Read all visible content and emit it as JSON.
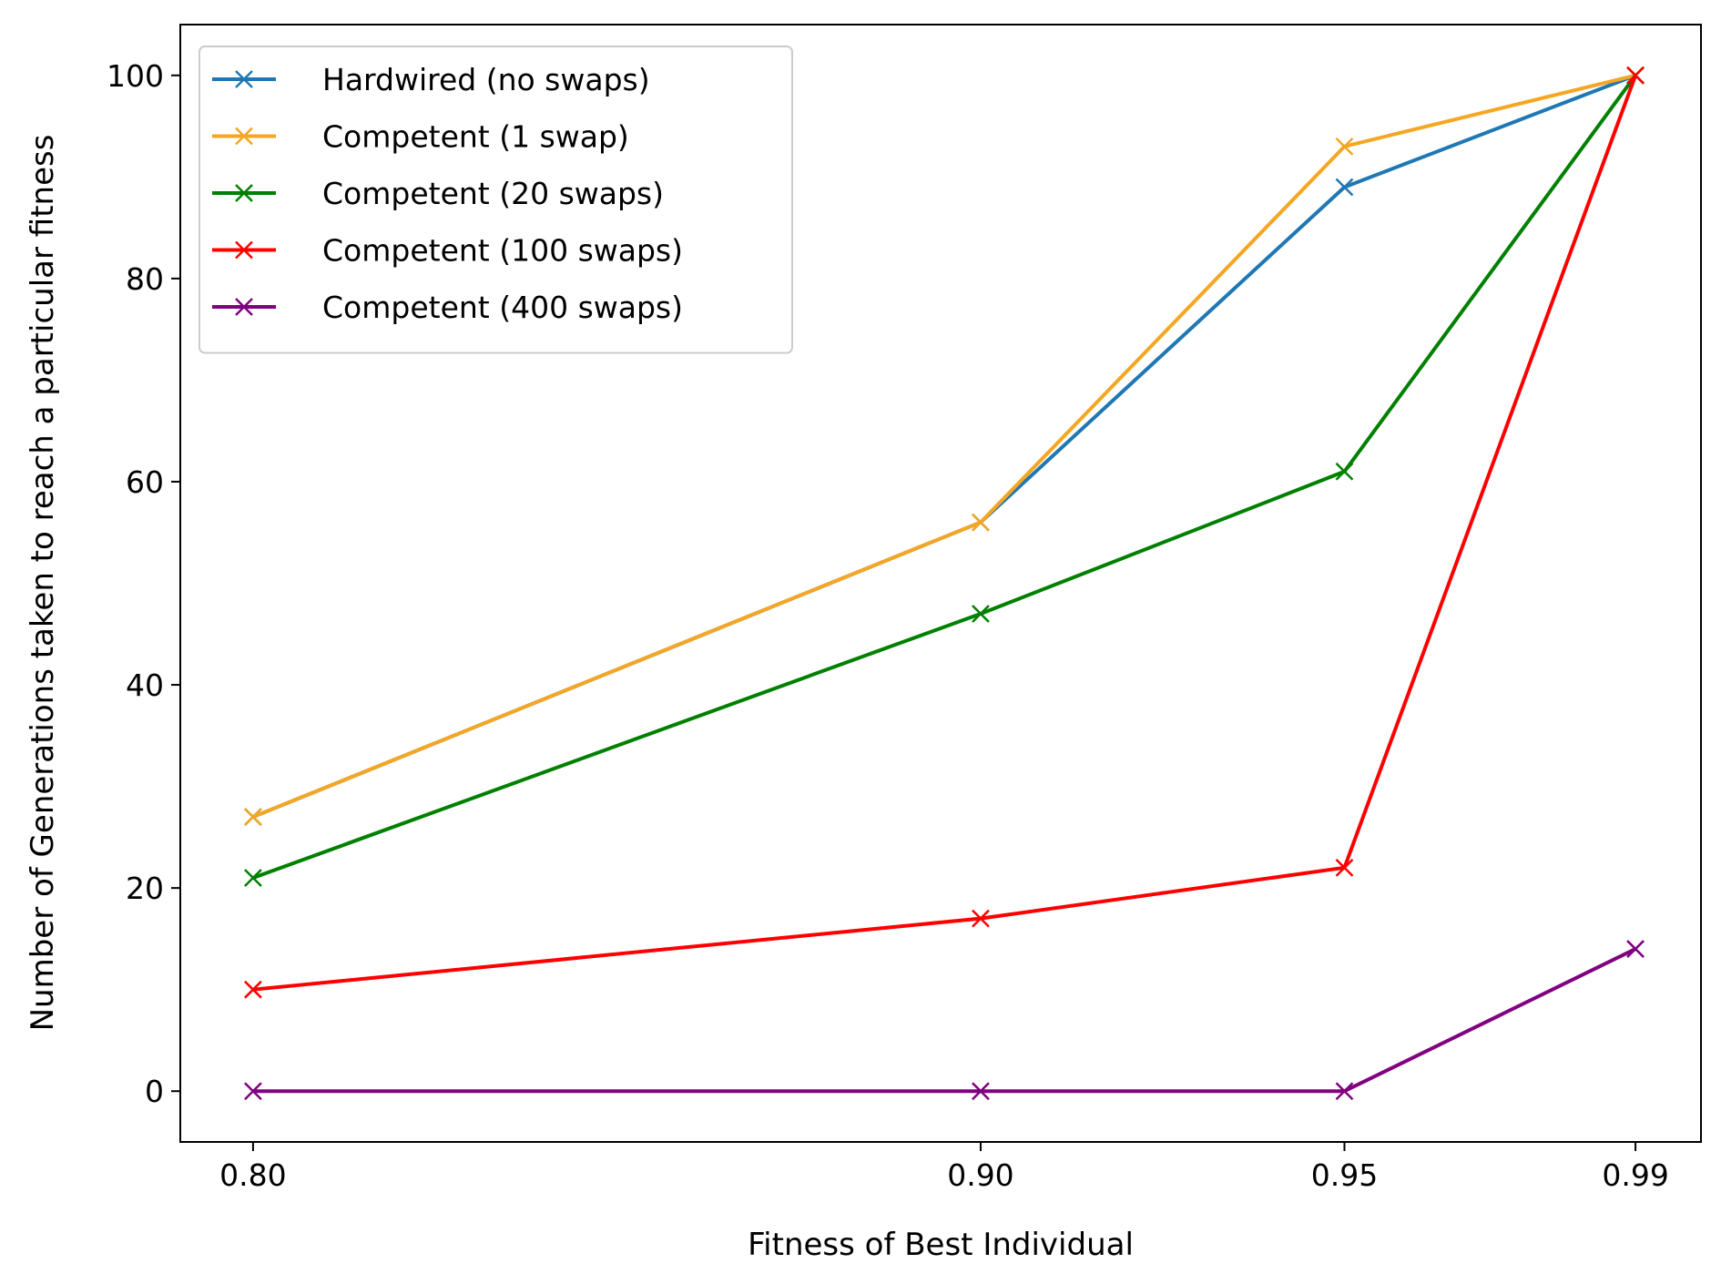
{
  "chart_data": {
    "type": "line",
    "title": "",
    "xlabel": "Fitness of Best Individual",
    "ylabel": "Number of Generations taken to reach a particular fitness",
    "x": [
      0.8,
      0.9,
      0.95,
      0.99
    ],
    "x_tick_labels": [
      "0.80",
      "0.90",
      "0.95",
      "0.99"
    ],
    "y_ticks": [
      0,
      20,
      40,
      60,
      80,
      100
    ],
    "y_tick_labels": [
      "0",
      "20",
      "40",
      "60",
      "80",
      "100"
    ],
    "xlim": [
      0.79,
      0.999
    ],
    "ylim": [
      -5,
      105
    ],
    "marker": "x",
    "grid": false,
    "legend_position": "top-left",
    "series": [
      {
        "name": "Hardwired (no swaps)",
        "color": "#1f77b4",
        "values": [
          27,
          56,
          89,
          100
        ]
      },
      {
        "name": "Competent (1 swap)",
        "color": "#f5a623",
        "values": [
          27,
          56,
          93,
          100
        ]
      },
      {
        "name": "Competent (20 swaps)",
        "color": "#008000",
        "values": [
          21,
          47,
          61,
          100
        ]
      },
      {
        "name": "Competent (100 swaps)",
        "color": "#ff0000",
        "values": [
          10,
          17,
          22,
          100
        ]
      },
      {
        "name": "Competent (400 swaps)",
        "color": "#800080",
        "values": [
          0,
          0,
          0,
          14
        ]
      }
    ]
  }
}
